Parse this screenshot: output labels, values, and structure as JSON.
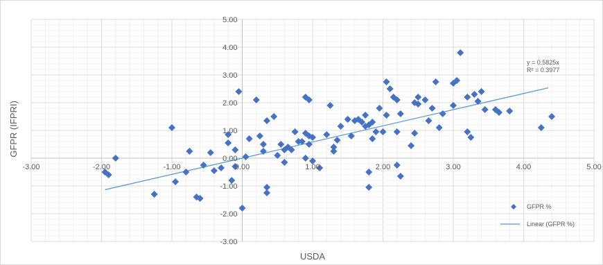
{
  "chart_data": {
    "type": "scatter",
    "xlabel": "USDA",
    "ylabel": "GFPR (IFPRI)",
    "xlim": [
      -3,
      5
    ],
    "ylim": [
      -3,
      5
    ],
    "x_ticks": [
      "-3.00",
      "-2.00",
      "-1.00",
      "0.00",
      "1.00",
      "2.00",
      "3.00",
      "4.00",
      "5.00"
    ],
    "y_ticks": [
      "5.00",
      "4.00",
      "3.00",
      "2.00",
      "1.00",
      "0.00",
      "-1.00",
      "-2.00",
      "-3.00"
    ],
    "grid": true,
    "colors": {
      "marker": "#4472C4",
      "trendline": "#5B9BD5"
    },
    "series": [
      {
        "name": "GFPR %",
        "marker": "diamond",
        "points": [
          [
            -1.8,
            0.0
          ],
          [
            -1.95,
            -0.5
          ],
          [
            -1.9,
            -0.6
          ],
          [
            -1.25,
            -1.3
          ],
          [
            -1.0,
            1.1
          ],
          [
            -0.95,
            -0.85
          ],
          [
            -0.8,
            -0.5
          ],
          [
            -0.75,
            0.25
          ],
          [
            -0.65,
            -1.4
          ],
          [
            -0.6,
            -1.45
          ],
          [
            -0.55,
            -0.25
          ],
          [
            -0.45,
            0.2
          ],
          [
            -0.4,
            -0.45
          ],
          [
            -0.3,
            -0.35
          ],
          [
            -0.2,
            0.55
          ],
          [
            -0.2,
            0.85
          ],
          [
            -0.15,
            -0.8
          ],
          [
            -0.1,
            0.3
          ],
          [
            -0.1,
            -0.3
          ],
          [
            -0.05,
            2.4
          ],
          [
            0.0,
            -1.8
          ],
          [
            0.05,
            0.05
          ],
          [
            0.1,
            0.7
          ],
          [
            0.2,
            2.1
          ],
          [
            0.25,
            0.8
          ],
          [
            0.3,
            0.25
          ],
          [
            0.3,
            0.5
          ],
          [
            0.35,
            -1.05
          ],
          [
            0.35,
            -1.25
          ],
          [
            0.35,
            1.35
          ],
          [
            0.45,
            1.5
          ],
          [
            0.5,
            0.1
          ],
          [
            0.55,
            0.5
          ],
          [
            0.6,
            0.3
          ],
          [
            0.6,
            -0.15
          ],
          [
            0.65,
            0.4
          ],
          [
            0.7,
            0.3
          ],
          [
            0.75,
            0.95
          ],
          [
            0.8,
            0.6
          ],
          [
            0.85,
            0.6
          ],
          [
            0.9,
            2.2
          ],
          [
            0.9,
            0.0
          ],
          [
            0.9,
            0.9
          ],
          [
            0.95,
            0.5
          ],
          [
            0.95,
            2.1
          ],
          [
            0.95,
            0.8
          ],
          [
            1.0,
            0.75
          ],
          [
            1.0,
            -0.1
          ],
          [
            1.1,
            -0.35
          ],
          [
            1.2,
            0.85
          ],
          [
            1.25,
            1.9
          ],
          [
            1.3,
            0.4
          ],
          [
            1.3,
            0.25
          ],
          [
            1.35,
            0.65
          ],
          [
            1.4,
            1.15
          ],
          [
            1.5,
            1.4
          ],
          [
            1.55,
            0.8
          ],
          [
            1.6,
            1.35
          ],
          [
            1.65,
            1.4
          ],
          [
            1.7,
            1.3
          ],
          [
            1.75,
            1.55
          ],
          [
            1.75,
            1.15
          ],
          [
            1.8,
            1.2
          ],
          [
            1.8,
            -0.5
          ],
          [
            1.8,
            -1.05
          ],
          [
            1.85,
            0.7
          ],
          [
            1.85,
            1.3
          ],
          [
            1.9,
            0.95
          ],
          [
            1.95,
            1.8
          ],
          [
            2.0,
            0.95
          ],
          [
            2.05,
            2.75
          ],
          [
            2.05,
            1.55
          ],
          [
            2.1,
            2.5
          ],
          [
            2.15,
            2.2
          ],
          [
            2.2,
            2.1
          ],
          [
            2.2,
            0.95
          ],
          [
            2.2,
            -0.25
          ],
          [
            2.25,
            1.6
          ],
          [
            2.25,
            -0.65
          ],
          [
            2.4,
            0.45
          ],
          [
            2.45,
            0.9
          ],
          [
            2.45,
            2.0
          ],
          [
            2.5,
            1.95
          ],
          [
            2.5,
            2.2
          ],
          [
            2.6,
            2.1
          ],
          [
            2.65,
            1.35
          ],
          [
            2.7,
            1.8
          ],
          [
            2.75,
            2.75
          ],
          [
            2.8,
            1.1
          ],
          [
            2.85,
            1.6
          ],
          [
            3.0,
            2.7
          ],
          [
            3.0,
            1.9
          ],
          [
            3.05,
            2.8
          ],
          [
            3.1,
            3.8
          ],
          [
            3.2,
            2.2
          ],
          [
            3.2,
            0.95
          ],
          [
            3.25,
            0.75
          ],
          [
            3.3,
            2.3
          ],
          [
            3.35,
            2.05
          ],
          [
            3.4,
            2.4
          ],
          [
            3.45,
            1.75
          ],
          [
            3.6,
            1.75
          ],
          [
            3.65,
            1.65
          ],
          [
            3.8,
            1.7
          ],
          [
            4.25,
            1.1
          ],
          [
            4.4,
            1.5
          ]
        ]
      }
    ],
    "trendline": {
      "name": "Linear (GFPR %)",
      "type": "linear",
      "slope": 0.5825,
      "intercept": 0,
      "x_range": [
        -1.95,
        4.35
      ],
      "equation": "y = 0.5825x",
      "r_squared": "R² = 0.3977"
    },
    "legend": {
      "position": "bottom-right",
      "items": [
        "GFPR %",
        "Linear (GFPR %)"
      ]
    }
  }
}
